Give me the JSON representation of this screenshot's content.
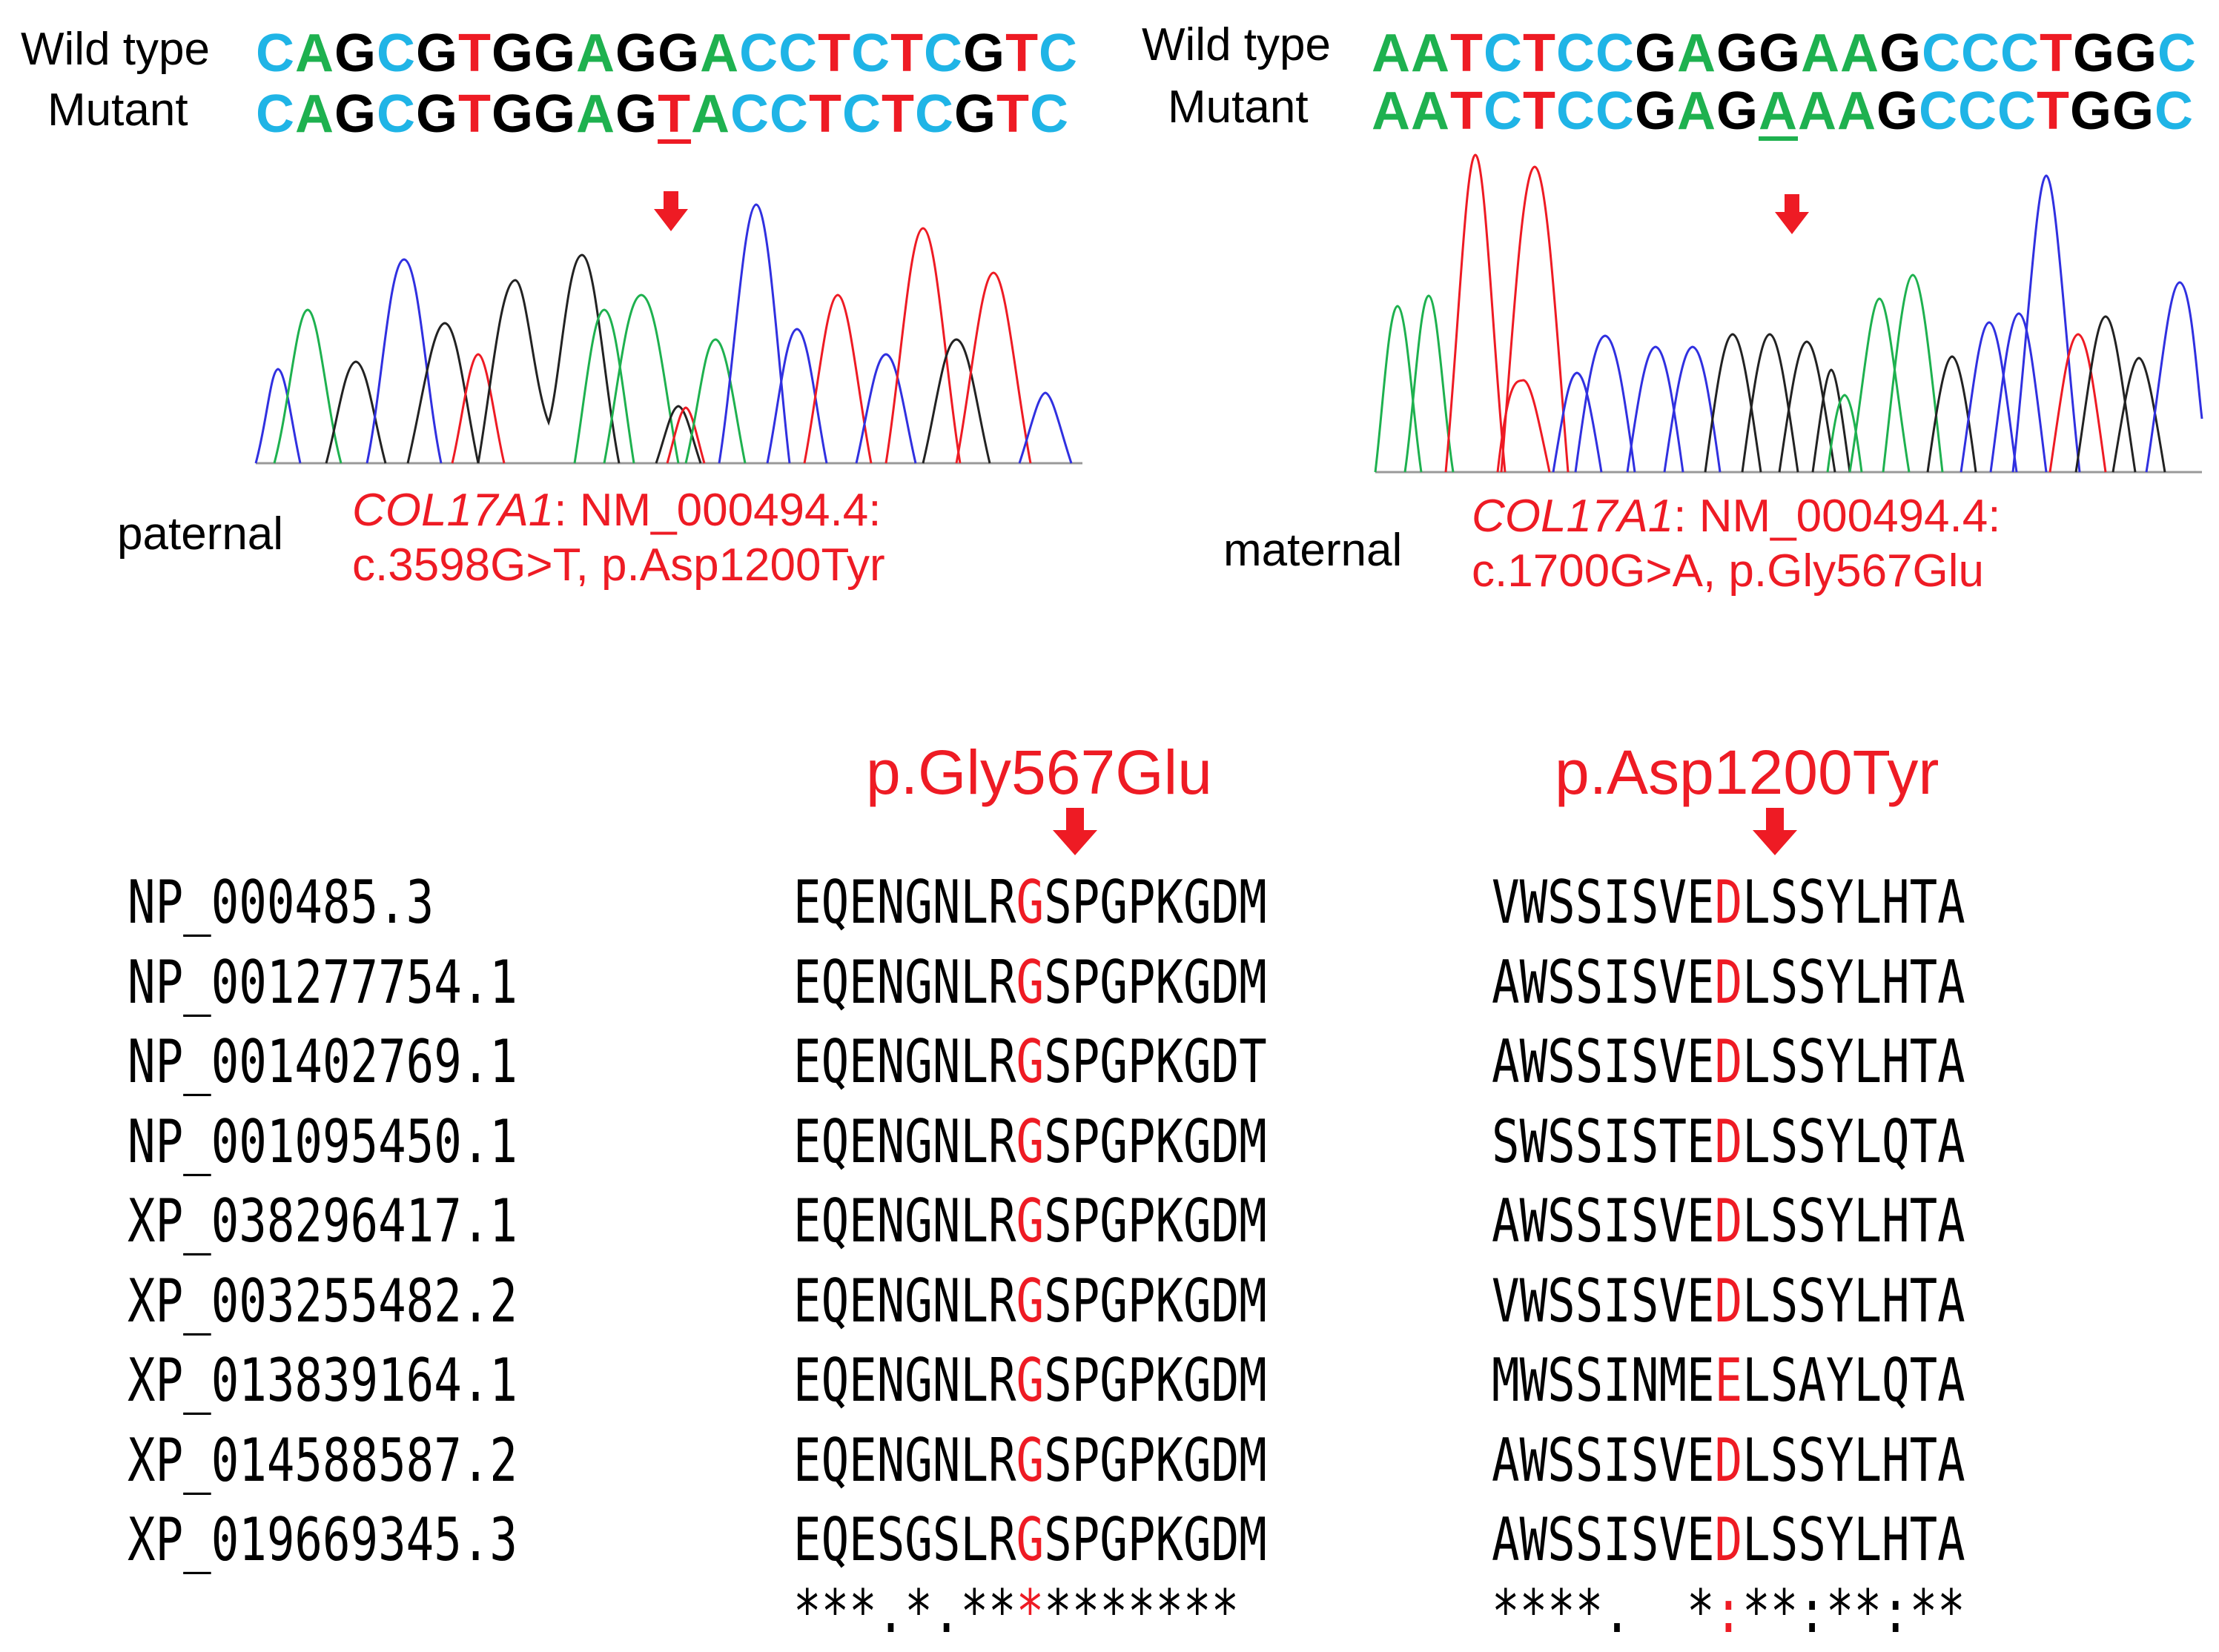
{
  "colors": {
    "A": "#1eb14f",
    "C": "#1fb4e6",
    "G": "#000000",
    "T": "#ee1b24",
    "highlight": "#ee1b24",
    "arrow": "#ee1b24"
  },
  "left_panel": {
    "wt_label": "Wild type",
    "mut_label": "Mutant",
    "wt_seq": "CAGCGTGGAGGACCTCTCGTC",
    "mut_seq": "CAGCGTGGAGTACCTCTCGTC",
    "mut_index": 10,
    "arrow_icon": "down-arrow-icon",
    "origin": "paternal",
    "gene": "COL17A1",
    "variant_line1_rest": ": NM_000494.4:",
    "variant_line2": "c.3598G>T, p.Asp1200Tyr"
  },
  "right_panel": {
    "wt_label": "Wild type",
    "mut_label": "Mutant",
    "wt_seq": "AATCTCCGAGGAAGCCCTGGC",
    "mut_seq": "AATCTCCGAGAAAGCCCTGGC",
    "mut_index": 10,
    "arrow_icon": "down-arrow-icon",
    "origin": "maternal",
    "gene": "COL17A1",
    "variant_line1_rest": ": NM_000494.4:",
    "variant_line2": "c.1700G>A, p.Gly567Glu"
  },
  "alignment": {
    "label_1": "p.Gly567Glu",
    "label_2": "p.Asp1200Tyr",
    "highlight_pos_1": 8,
    "highlight_pos_2": 8,
    "rows": [
      {
        "id": "NP_000485.3",
        "seq1": "EQENGNLRGSPGPKGDM",
        "seq2": "VWSSISVEDLSSYLHTA"
      },
      {
        "id": "NP_001277754.1",
        "seq1": "EQENGNLRGSPGPKGDM",
        "seq2": "AWSSISVEDLSSYLHTA"
      },
      {
        "id": "NP_001402769.1",
        "seq1": "EQENGNLRGSPGPKGDT",
        "seq2": "AWSSISVEDLSSYLHTA"
      },
      {
        "id": "NP_001095450.1",
        "seq1": "EQENGNLRGSPGPKGDM",
        "seq2": "SWSSISTEDLSSYLQTA"
      },
      {
        "id": "XP_038296417.1",
        "seq1": "EQENGNLRGSPGPKGDM",
        "seq2": "AWSSISVEDLSSYLHTA"
      },
      {
        "id": "XP_003255482.2",
        "seq1": "EQENGNLRGSPGPKGDM",
        "seq2": "VWSSISVEDLSSYLHTA"
      },
      {
        "id": "XP_013839164.1",
        "seq1": "EQENGNLRGSPGPKGDM",
        "seq2": "MWSSINMEELSAYLQTA"
      },
      {
        "id": "XP_014588587.2",
        "seq1": "EQENGNLRGSPGPKGDM",
        "seq2": "AWSSISVEDLSSYLHTA"
      },
      {
        "id": "XP_019669345.3",
        "seq1": "EQESGSLRGSPGPKGDM",
        "seq2": "AWSSISVEDLSSYLHTA"
      }
    ],
    "conservation_1": "***.*.**********",
    "conservation_2": "****.  *:**:**:**"
  }
}
